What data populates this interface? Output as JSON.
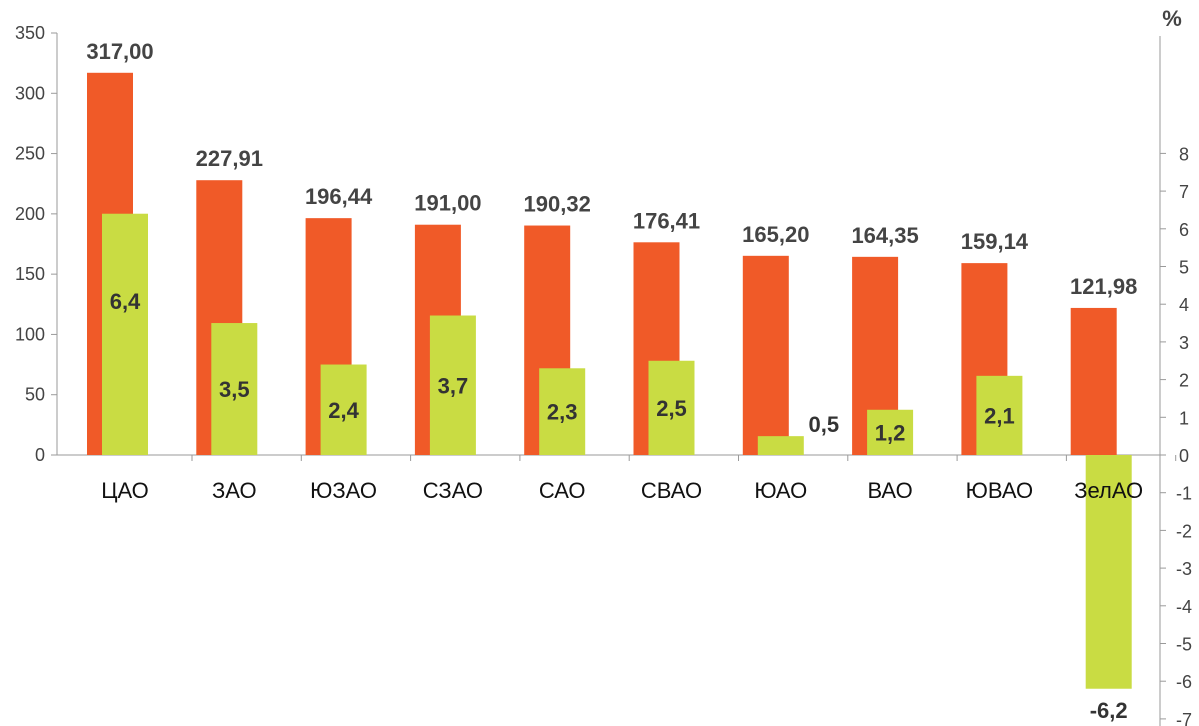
{
  "chart_data": {
    "type": "bar",
    "categories": [
      "ЦАО",
      "ЗАО",
      "ЮЗАО",
      "СЗАО",
      "САО",
      "СВАО",
      "ЮАО",
      "ВАО",
      "ЮВАО",
      "ЗелАО"
    ],
    "series": [
      {
        "values": [
          317.0,
          227.91,
          196.44,
          191.0,
          190.32,
          176.41,
          165.2,
          164.35,
          159.14,
          121.98
        ],
        "labels": [
          "317,00",
          "227,91",
          "196,44",
          "191,00",
          "190,32",
          "176,41",
          "165,20",
          "164,35",
          "159,14",
          "121,98"
        ],
        "color": "#f05a28",
        "axis": "left"
      },
      {
        "values": [
          6.4,
          3.5,
          2.4,
          3.7,
          2.3,
          2.5,
          0.5,
          1.2,
          2.1,
          -6.2
        ],
        "labels": [
          "6,4",
          "3,5",
          "2,4",
          "3,7",
          "2,3",
          "2,5",
          "0,5",
          "1,2",
          "2,1",
          "-6,2"
        ],
        "color": "#c9dc43",
        "axis": "right"
      }
    ],
    "left_axis": {
      "ticks": [
        "0",
        "50",
        "100",
        "150",
        "200",
        "250",
        "300",
        "350"
      ],
      "range": [
        0,
        350
      ]
    },
    "right_axis": {
      "unit": "%",
      "ticks": [
        "-7",
        "-6",
        "-5",
        "-4",
        "-3",
        "-2",
        "-1",
        "0",
        "1",
        "2",
        "3",
        "4",
        "5",
        "6",
        "7",
        "8"
      ],
      "range": [
        -7,
        8
      ]
    },
    "grid": false
  }
}
